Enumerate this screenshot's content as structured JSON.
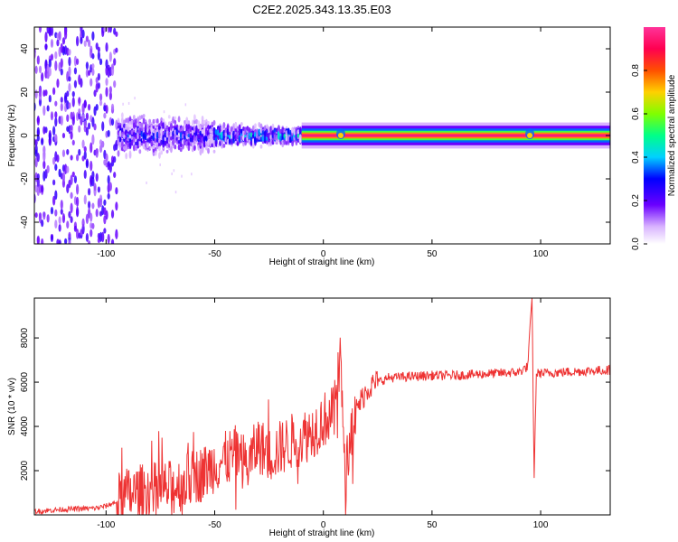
{
  "title": "C2E2.2025.343.13.35.E03",
  "chart_data": [
    {
      "type": "heatmap",
      "title": "C2E2.2025.343.13.35.E03",
      "xlabel": "Height of straight line (km)",
      "ylabel": "Frequency (Hz)",
      "xlim": [
        -133,
        132
      ],
      "ylim": [
        -50,
        50
      ],
      "xticks": [
        -100,
        -50,
        0,
        50,
        100
      ],
      "yticks": [
        -40,
        -20,
        0,
        20,
        40
      ],
      "colorbar": {
        "label": "Normalized spectral amplitude",
        "range": [
          0,
          1
        ],
        "ticks": [
          0.0,
          0.2,
          0.4,
          0.6,
          0.8
        ],
        "colors": [
          "#ffffff",
          "#d9b3ff",
          "#6a00ff",
          "#0000ff",
          "#00d0ff",
          "#00ff88",
          "#80ff00",
          "#ffd000",
          "#ff5000",
          "#ff0050",
          "#ff3399"
        ]
      },
      "description_regions": [
        {
          "x_range": [
            -133,
            -95
          ],
          "freq_spread_hz": 50,
          "amplitude": 0.15
        },
        {
          "x_range": [
            -95,
            -50
          ],
          "freq_spread_hz": 12,
          "amplitude": 0.3
        },
        {
          "x_range": [
            -50,
            -10
          ],
          "freq_spread_hz": 8,
          "amplitude": 0.45
        },
        {
          "x_range": [
            -10,
            132
          ],
          "freq_spread_hz": 2,
          "amplitude": 0.95
        }
      ]
    },
    {
      "type": "line",
      "xlabel": "Height of straight line (km)",
      "ylabel": "SNR (10 * v/v)",
      "xlim": [
        -133,
        132
      ],
      "ylim": [
        0,
        9800
      ],
      "xticks": [
        -100,
        -50,
        0,
        50,
        100
      ],
      "yticks": [
        2000,
        4000,
        6000,
        8000
      ],
      "color": "#ee3333",
      "series": [
        {
          "name": "SNR",
          "x": [
            -133,
            -120,
            -105,
            -100,
            -95,
            -90,
            -80,
            -70,
            -60,
            -55,
            -50,
            -45,
            -40,
            -35,
            -30,
            -25,
            -20,
            -15,
            -10,
            -5,
            0,
            5,
            8,
            10,
            12,
            15,
            20,
            25,
            30,
            40,
            50,
            60,
            70,
            80,
            90,
            94,
            96,
            97,
            98,
            100,
            110,
            120,
            132
          ],
          "y": [
            150,
            250,
            300,
            400,
            600,
            900,
            1100,
            1200,
            1700,
            1900,
            2300,
            2500,
            2800,
            2200,
            3200,
            2700,
            3000,
            3300,
            3500,
            3800,
            4300,
            4600,
            7200,
            1300,
            3500,
            4700,
            5700,
            6000,
            6200,
            6250,
            6300,
            6300,
            6350,
            6400,
            6450,
            6700,
            9800,
            1600,
            6400,
            6400,
            6450,
            6500,
            6550
          ]
        }
      ]
    }
  ]
}
